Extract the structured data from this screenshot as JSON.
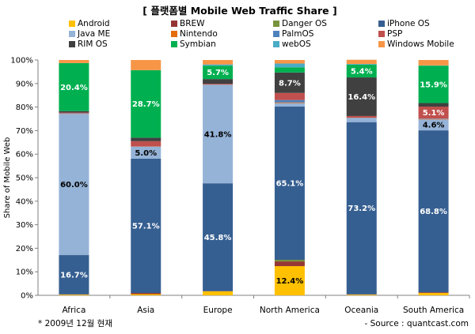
{
  "chart_data": {
    "type": "bar",
    "stacked": true,
    "title": "[ 플랫폼별 Mobile Web Traffic Share ]",
    "ylabel": "Share of Mobile Web",
    "xlabel": "",
    "ylim": [
      0,
      100
    ],
    "yticks": [
      "0%",
      "10%",
      "20%",
      "30%",
      "40%",
      "50%",
      "60%",
      "70%",
      "80%",
      "90%",
      "100%"
    ],
    "categories": [
      "Africa",
      "Asia",
      "Europe",
      "North America",
      "Oceania",
      "South America"
    ],
    "legend_position": "top",
    "series": [
      {
        "name": "Android",
        "color": "#ffc000",
        "values": [
          0.3,
          0.5,
          1.7,
          12.4,
          0.3,
          1.0
        ]
      },
      {
        "name": "BREW",
        "color": "#943634",
        "values": [
          0.1,
          0.5,
          0.1,
          2.0,
          0.1,
          0.3
        ]
      },
      {
        "name": "Danger OS",
        "color": "#77933c",
        "values": [
          0.0,
          0.0,
          0.0,
          0.7,
          0.0,
          0.0
        ]
      },
      {
        "name": "iPhone OS",
        "color": "#365f91",
        "values": [
          16.7,
          57.1,
          45.8,
          65.1,
          73.2,
          68.8
        ]
      },
      {
        "name": "Java ME",
        "color": "#95b3d7",
        "values": [
          60.0,
          5.0,
          41.8,
          1.5,
          1.7,
          4.6
        ]
      },
      {
        "name": "Nintendo",
        "color": "#e46c0a",
        "values": [
          0.1,
          0.1,
          0.1,
          0.3,
          0.1,
          0.2
        ]
      },
      {
        "name": "PalmOS",
        "color": "#4f81bd",
        "values": [
          0.2,
          0.1,
          0.1,
          1.0,
          0.1,
          0.2
        ]
      },
      {
        "name": "PSP",
        "color": "#c0504d",
        "values": [
          0.3,
          2.2,
          0.3,
          3.0,
          0.7,
          5.1
        ]
      },
      {
        "name": "RIM OS",
        "color": "#404040",
        "values": [
          0.6,
          1.5,
          2.0,
          8.7,
          16.4,
          1.5
        ]
      },
      {
        "name": "Symbian",
        "color": "#00b050",
        "values": [
          20.4,
          28.7,
          5.7,
          2.2,
          5.4,
          15.9
        ]
      },
      {
        "name": "webOS",
        "color": "#4bacc6",
        "values": [
          0.0,
          0.0,
          0.5,
          1.6,
          0.3,
          0.1
        ]
      },
      {
        "name": "Windows Mobile",
        "color": "#f79646",
        "values": [
          1.3,
          4.3,
          1.9,
          1.5,
          1.8,
          2.3
        ]
      }
    ],
    "data_labels": [
      {
        "category": "Africa",
        "series": "iPhone OS",
        "text": "16.7%"
      },
      {
        "category": "Africa",
        "series": "Java ME",
        "text": "60.0%"
      },
      {
        "category": "Africa",
        "series": "Symbian",
        "text": "20.4%"
      },
      {
        "category": "Asia",
        "series": "iPhone OS",
        "text": "57.1%"
      },
      {
        "category": "Asia",
        "series": "Java ME",
        "text": "5.0%"
      },
      {
        "category": "Asia",
        "series": "Symbian",
        "text": "28.7%"
      },
      {
        "category": "Europe",
        "series": "iPhone OS",
        "text": "45.8%"
      },
      {
        "category": "Europe",
        "series": "Java ME",
        "text": "41.8%"
      },
      {
        "category": "Europe",
        "series": "Symbian",
        "text": "5.7%"
      },
      {
        "category": "North America",
        "series": "Android",
        "text": "12.4%"
      },
      {
        "category": "North America",
        "series": "iPhone OS",
        "text": "65.1%"
      },
      {
        "category": "North America",
        "series": "RIM OS",
        "text": "8.7%"
      },
      {
        "category": "Oceania",
        "series": "iPhone OS",
        "text": "73.2%"
      },
      {
        "category": "Oceania",
        "series": "RIM OS",
        "text": "16.4%"
      },
      {
        "category": "Oceania",
        "series": "Symbian",
        "text": "5.4%"
      },
      {
        "category": "South America",
        "series": "iPhone OS",
        "text": "68.8%"
      },
      {
        "category": "South America",
        "series": "Java ME",
        "text": "4.6%"
      },
      {
        "category": "South America",
        "series": "PSP",
        "text": "5.1%"
      },
      {
        "category": "South America",
        "series": "Symbian",
        "text": "15.9%"
      }
    ],
    "notes": {
      "date": "* 2009년 12월 현재",
      "source": "- Source : quantcast.com"
    }
  }
}
